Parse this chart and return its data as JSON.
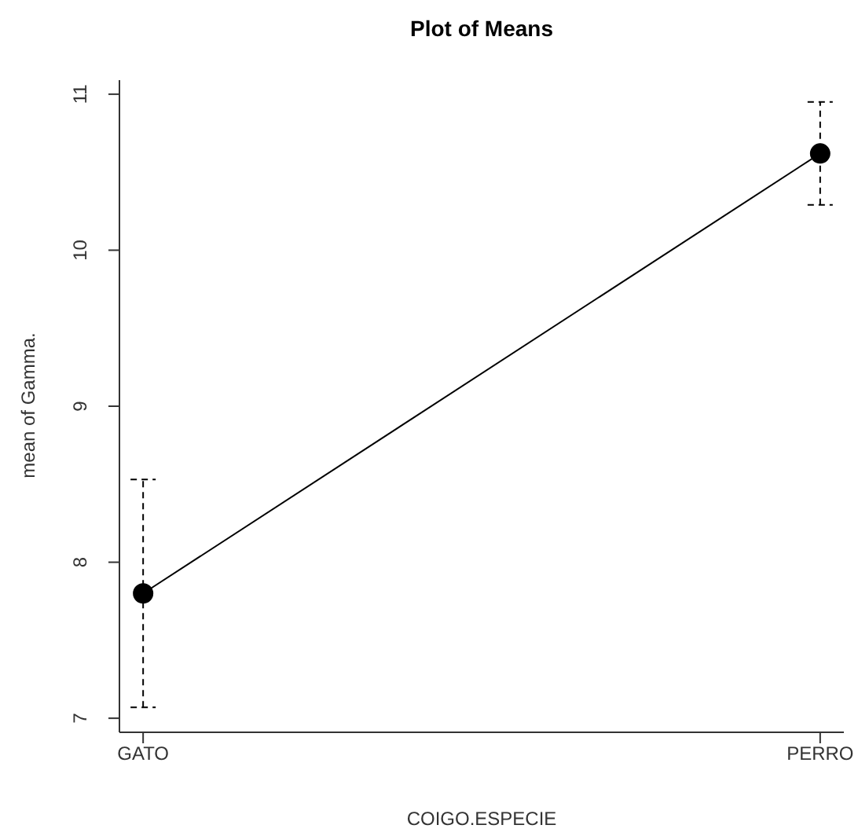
{
  "chart_data": {
    "type": "line",
    "title": "Plot of Means",
    "xlabel": "COIGO.ESPECIE",
    "ylabel": "mean of Gamma.",
    "categories": [
      "GATO",
      "PERRO"
    ],
    "series": [
      {
        "color": "#000000",
        "values": [
          7.8,
          10.62
        ],
        "errors": [
          0.73,
          0.33
        ]
      }
    ],
    "ylim": [
      6.91,
      11.09
    ],
    "yticks": [
      7,
      8,
      9,
      10,
      11
    ],
    "marker": "circle",
    "line_style": "solid"
  }
}
